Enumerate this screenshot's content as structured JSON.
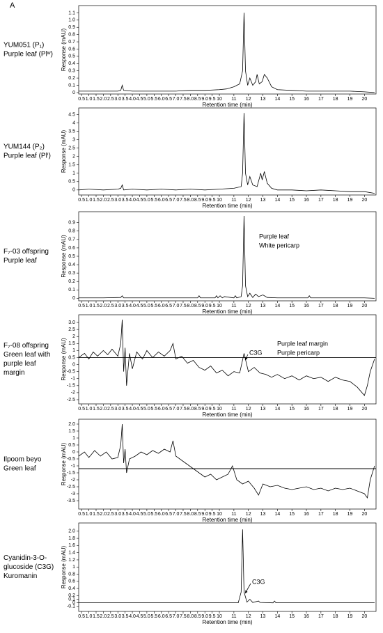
{
  "panel_label": "A",
  "chart_data": [
    {
      "type": "line",
      "label": [
        "YUM051 (P₁)",
        "Purple leaf (Plʷ)"
      ],
      "xlabel": "Retention time (min)",
      "ylabel": "Response (mAU)",
      "color": "#000000",
      "x": [
        0.3,
        1,
        2,
        3,
        3.2,
        3.3,
        3.4,
        4,
        5,
        6,
        7,
        8,
        9,
        10,
        10.5,
        11,
        11.4,
        11.6,
        11.7,
        11.8,
        11.95,
        12.1,
        12.3,
        12.5,
        12.6,
        12.75,
        12.95,
        13.1,
        13.3,
        13.6,
        14,
        15,
        16,
        17,
        18,
        19,
        20,
        20.7
      ],
      "values": [
        0.02,
        0.02,
        0.02,
        0.02,
        0.03,
        0.1,
        0.03,
        0.02,
        0.02,
        0.02,
        0.02,
        0.03,
        0.03,
        0.04,
        0.05,
        0.08,
        0.12,
        0.3,
        1.1,
        0.3,
        0.1,
        0.2,
        0.1,
        0.15,
        0.25,
        0.12,
        0.15,
        0.25,
        0.2,
        0.08,
        0.04,
        0.03,
        0.02,
        0.02,
        0.02,
        0.02,
        0.01,
        0.0
      ],
      "xlim": [
        0.3,
        20.8
      ],
      "ylim": [
        -0.02,
        1.2
      ],
      "xticks": [
        0.5,
        {
          "value": 1,
          "label": "1.0"
        },
        1.5,
        {
          "value": 2,
          "label": "2.0"
        },
        2.5,
        {
          "value": 3,
          "label": "3.0"
        },
        3.5,
        {
          "value": 4,
          "label": "4.0"
        },
        4.5,
        {
          "value": 5,
          "label": "5.0"
        },
        5.5,
        {
          "value": 6,
          "label": "6.0"
        },
        6.5,
        {
          "value": 7,
          "label": "7.0"
        },
        7.5,
        {
          "value": 8,
          "label": "8.0"
        },
        8.5,
        {
          "value": 9,
          "label": "9.0"
        },
        9.5,
        10,
        11,
        12,
        13,
        14,
        15,
        16,
        17,
        18,
        19,
        20
      ],
      "yticks": [
        0,
        0.1,
        0.2,
        0.3,
        0.4,
        0.5,
        0.6,
        0.7,
        0.8,
        0.9,
        {
          "value": 1,
          "label": "1.0"
        },
        1.1
      ],
      "annotations": []
    },
    {
      "type": "line",
      "label": [
        "YUM144 (P₂)",
        "Purple leaf (Plⁱ)"
      ],
      "xlabel": "Retention time (min)",
      "ylabel": "Response (mAU)",
      "color": "#000000",
      "x": [
        0.3,
        1,
        2,
        3,
        3.2,
        3.3,
        3.4,
        4,
        5,
        6,
        7,
        8,
        9,
        10,
        11,
        11.5,
        11.6,
        11.7,
        11.8,
        11.95,
        12.1,
        12.3,
        12.6,
        12.85,
        12.95,
        13.1,
        13.3,
        13.6,
        14,
        15,
        16,
        17,
        18,
        19,
        20,
        20.7
      ],
      "values": [
        0,
        0.05,
        0,
        0.05,
        0.1,
        0.3,
        0,
        0.05,
        0,
        0.05,
        0,
        0.05,
        0,
        0.05,
        0.1,
        0.2,
        1.0,
        4.6,
        1.0,
        0.3,
        0.8,
        0.3,
        0.2,
        1.0,
        0.6,
        1.1,
        0.4,
        0.1,
        0,
        0,
        -0.05,
        0,
        -0.05,
        -0.1,
        -0.1,
        -0.2
      ],
      "xlim": [
        0.3,
        20.8
      ],
      "ylim": [
        -0.3,
        4.9
      ],
      "xticks": [
        0.5,
        {
          "value": 1,
          "label": "1.0"
        },
        1.5,
        {
          "value": 2,
          "label": "2.0"
        },
        2.5,
        {
          "value": 3,
          "label": "3.0"
        },
        3.5,
        {
          "value": 4,
          "label": "4.0"
        },
        4.5,
        {
          "value": 5,
          "label": "5.0"
        },
        5.5,
        {
          "value": 6,
          "label": "6.0"
        },
        6.5,
        {
          "value": 7,
          "label": "7.0"
        },
        7.5,
        {
          "value": 8,
          "label": "8.0"
        },
        8.5,
        {
          "value": 9,
          "label": "9.0"
        },
        9.5,
        10,
        11,
        12,
        13,
        14,
        15,
        16,
        17,
        18,
        19,
        20
      ],
      "yticks": [
        0,
        0.5,
        1,
        1.5,
        2,
        2.5,
        3,
        3.5,
        4,
        4.5
      ],
      "annotations": []
    },
    {
      "type": "line",
      "label": [
        "F₇-03 offspring",
        "Purple leaf"
      ],
      "xlabel": "Retention time (min)",
      "ylabel": "Response (mAU)",
      "color": "#000000",
      "x": [
        0.3,
        2,
        3.2,
        3.3,
        3.4,
        6,
        8.5,
        8.6,
        8.7,
        9.7,
        9.8,
        9.9,
        10.05,
        10.2,
        10.35,
        11,
        11.1,
        11.2,
        11.5,
        11.6,
        11.7,
        11.8,
        11.95,
        12.1,
        12.3,
        12.5,
        12.7,
        13,
        13.3,
        14,
        16.1,
        16.2,
        16.3,
        18,
        20,
        20.7
      ],
      "values": [
        0.005,
        0.005,
        0.01,
        0.03,
        0.005,
        0.005,
        0.005,
        0.03,
        0.005,
        0.005,
        0.03,
        0.005,
        0.03,
        0.005,
        0.02,
        0.005,
        0.03,
        0.005,
        0.02,
        0.15,
        0.98,
        0.15,
        0.02,
        0.06,
        0.01,
        0.05,
        0.02,
        0.04,
        0.01,
        0.005,
        0.005,
        0.03,
        0.005,
        0.005,
        0.005,
        0
      ],
      "xlim": [
        0.3,
        20.8
      ],
      "ylim": [
        -0.03,
        1.03
      ],
      "xticks": [
        0.5,
        {
          "value": 1,
          "label": "1.0"
        },
        1.5,
        {
          "value": 2,
          "label": "2.0"
        },
        2.5,
        {
          "value": 3,
          "label": "3.0"
        },
        3.5,
        {
          "value": 4,
          "label": "4.0"
        },
        4.5,
        {
          "value": 5,
          "label": "5.0"
        },
        5.5,
        {
          "value": 6,
          "label": "6.0"
        },
        6.5,
        {
          "value": 7,
          "label": "7.0"
        },
        7.5,
        {
          "value": 8,
          "label": "8.0"
        },
        8.5,
        {
          "value": 9,
          "label": "9.0"
        },
        9.5,
        10,
        11,
        12,
        13,
        14,
        15,
        16,
        17,
        18,
        19,
        20
      ],
      "yticks": [
        0,
        0.1,
        0.2,
        0.3,
        0.4,
        0.5,
        0.6,
        0.7,
        0.8,
        0.9
      ],
      "annotations": [
        "Purple leaf",
        "White pericarp"
      ]
    },
    {
      "type": "line",
      "label": [
        "F₇-08 offspring",
        "Green leaf with",
        "purple leaf",
        "margin"
      ],
      "xlabel": "Retention time (min)",
      "ylabel": "Response (mAU)",
      "color": "#000000",
      "baseline": 0.5,
      "x": [
        0.3,
        0.7,
        1.0,
        1.3,
        1.6,
        2.0,
        2.3,
        2.6,
        3.0,
        3.2,
        3.3,
        3.4,
        3.5,
        3.6,
        3.8,
        4.0,
        4.3,
        4.7,
        5.0,
        5.4,
        5.8,
        6.2,
        6.6,
        6.8,
        7.0,
        7.4,
        7.8,
        8.2,
        8.6,
        9.0,
        9.4,
        9.8,
        10.2,
        10.6,
        11.0,
        11.4,
        11.7,
        12.0,
        12.4,
        12.8,
        13.2,
        13.6,
        14.0,
        14.5,
        15.0,
        15.5,
        16.0,
        16.5,
        17.0,
        17.5,
        18.0,
        18.5,
        19.0,
        19.5,
        20.0,
        20.2,
        20.4,
        20.7
      ],
      "values": [
        0.5,
        0.8,
        0.4,
        0.9,
        0.6,
        1.0,
        0.7,
        1.1,
        0.6,
        1.5,
        3.2,
        -0.5,
        1.2,
        -1.5,
        0.8,
        -0.3,
        0.9,
        0.4,
        1.0,
        0.5,
        0.9,
        0.6,
        1.0,
        1.5,
        0.4,
        0.6,
        0.1,
        0.3,
        -0.2,
        -0.4,
        -0.1,
        -0.6,
        -0.4,
        -0.8,
        -0.5,
        -0.6,
        0.8,
        -0.5,
        -0.2,
        -0.6,
        -0.7,
        -0.9,
        -0.7,
        -1.0,
        -0.8,
        -1.1,
        -0.8,
        -1.0,
        -0.9,
        -1.2,
        -0.9,
        -1.1,
        -1.2,
        -1.6,
        -2.2,
        -1.5,
        -0.5,
        0.4
      ],
      "xlim": [
        0.3,
        20.8
      ],
      "ylim": [
        -2.8,
        3.55
      ],
      "xticks": [
        0.5,
        {
          "value": 1,
          "label": "1.0"
        },
        1.5,
        {
          "value": 2,
          "label": "2.0"
        },
        2.5,
        {
          "value": 3,
          "label": "3.0"
        },
        3.5,
        {
          "value": 4,
          "label": "4.0"
        },
        4.5,
        {
          "value": 5,
          "label": "5.0"
        },
        5.5,
        {
          "value": 6,
          "label": "6.0"
        },
        6.5,
        {
          "value": 7,
          "label": "7.0"
        },
        7.5,
        {
          "value": 8,
          "label": "8.0"
        },
        8.5,
        {
          "value": 9,
          "label": "9.0"
        },
        9.5,
        10,
        11,
        12,
        13,
        14,
        15,
        16,
        17,
        18,
        19,
        20
      ],
      "yticks": [
        -2.5,
        -2,
        -1.5,
        -1,
        -0.5,
        0,
        0.5,
        1,
        1.5,
        2,
        2.5,
        {
          "value": 3,
          "label": "3.0"
        }
      ],
      "annotations": [
        "C3G",
        "Purple leaf margin",
        "Purple pericarp"
      ]
    },
    {
      "type": "line",
      "label": [
        "Ilpoom beyo",
        "Green leaf"
      ],
      "xlabel": "Retention time (min)",
      "ylabel": "Response (mAU)",
      "color": "#000000",
      "baseline": -1.2,
      "x": [
        0.3,
        0.7,
        1.0,
        1.4,
        1.8,
        2.2,
        2.6,
        3.0,
        3.2,
        3.3,
        3.4,
        3.5,
        3.6,
        3.8,
        4.2,
        4.6,
        5.0,
        5.4,
        5.8,
        6.2,
        6.6,
        6.8,
        7.0,
        7.4,
        7.8,
        8.2,
        8.6,
        9.0,
        9.4,
        9.8,
        10.2,
        10.6,
        10.9,
        11.2,
        11.6,
        12.0,
        12.4,
        12.7,
        13.0,
        13.5,
        14.0,
        14.5,
        15.0,
        15.5,
        16.0,
        16.5,
        17.0,
        17.5,
        18.0,
        18.5,
        19.0,
        19.5,
        20.0,
        20.2,
        20.4,
        20.7
      ],
      "values": [
        -0.3,
        0,
        -0.4,
        0.1,
        -0.3,
        0,
        -0.5,
        -0.4,
        0.5,
        2.0,
        -0.8,
        0.2,
        -1.5,
        -0.5,
        -0.3,
        0,
        -0.2,
        0.1,
        -0.1,
        0.2,
        0,
        0.8,
        -0.3,
        -0.6,
        -0.9,
        -1.2,
        -1.5,
        -1.8,
        -1.6,
        -2.0,
        -1.8,
        -1.6,
        -1.0,
        -2.0,
        -2.3,
        -2.1,
        -2.6,
        -3.1,
        -2.3,
        -2.5,
        -2.4,
        -2.6,
        -2.7,
        -2.6,
        -2.5,
        -2.7,
        -2.6,
        -2.8,
        -2.6,
        -2.7,
        -2.6,
        -2.8,
        -3.0,
        -3.3,
        -2.0,
        -1.0
      ],
      "xlim": [
        0.3,
        20.8
      ],
      "ylim": [
        -4.1,
        2.35
      ],
      "xticks": [
        0.5,
        {
          "value": 1,
          "label": "1.0"
        },
        1.5,
        {
          "value": 2,
          "label": "2.0"
        },
        2.5,
        {
          "value": 3,
          "label": "3.0"
        },
        3.5,
        {
          "value": 4,
          "label": "4.0"
        },
        4.5,
        {
          "value": 5,
          "label": "5.0"
        },
        5.5,
        {
          "value": 6,
          "label": "6.0"
        },
        6.5,
        {
          "value": 7,
          "label": "7.0"
        },
        7.5,
        {
          "value": 8,
          "label": "8.0"
        },
        8.5,
        {
          "value": 9,
          "label": "9.0"
        },
        9.5,
        10,
        11,
        12,
        13,
        14,
        15,
        16,
        17,
        18,
        19,
        20
      ],
      "yticks": [
        -3.5,
        -3,
        -2.5,
        -2,
        -1.5,
        -1,
        -0.5,
        0,
        0.5,
        1,
        1.5,
        {
          "value": 2,
          "label": "2.0"
        }
      ],
      "annotations": []
    },
    {
      "type": "line",
      "label": [
        "Cyanidin-3-O-",
        "glucoside (C3G)",
        "Kuromanin"
      ],
      "xlabel": "Retention time (min)",
      "ylabel": "Response (mAU)",
      "color": "#000000",
      "x": [
        0.3,
        5,
        10,
        11.3,
        11.5,
        11.6,
        11.7,
        11.9,
        12.1,
        12.3,
        12.7,
        12.8,
        13.7,
        13.8,
        13.9,
        16,
        20,
        20.7
      ],
      "values": [
        0,
        0,
        0,
        0,
        0.3,
        2.05,
        0.3,
        0.02,
        0.1,
        0.01,
        0.05,
        0.01,
        0,
        0.05,
        0,
        0,
        0,
        0
      ],
      "xlim": [
        0.3,
        20.8
      ],
      "ylim": [
        -0.24,
        2.23
      ],
      "xticks": [
        0.5,
        {
          "value": 1,
          "label": "1.0"
        },
        1.5,
        {
          "value": 2,
          "label": "2.0"
        },
        2.5,
        {
          "value": 3,
          "label": "3.0"
        },
        3.5,
        {
          "value": 4,
          "label": "4.0"
        },
        4.5,
        {
          "value": 5,
          "label": "5.0"
        },
        5.5,
        {
          "value": 6,
          "label": "6.0"
        },
        6.5,
        {
          "value": 7,
          "label": "7.0"
        },
        7.5,
        {
          "value": 8,
          "label": "8.0"
        },
        8.5,
        {
          "value": 9,
          "label": "9.0"
        },
        9.5,
        10,
        11,
        12,
        13,
        14,
        15,
        16,
        17,
        18,
        19,
        20
      ],
      "yticks": [
        -0.1,
        0,
        0.1,
        0.2,
        0.4,
        0.6,
        0.8,
        1,
        1.2,
        1.4,
        1.6,
        1.8,
        {
          "value": 2,
          "label": "2.0"
        }
      ],
      "annotations": [
        "C3G"
      ]
    }
  ]
}
